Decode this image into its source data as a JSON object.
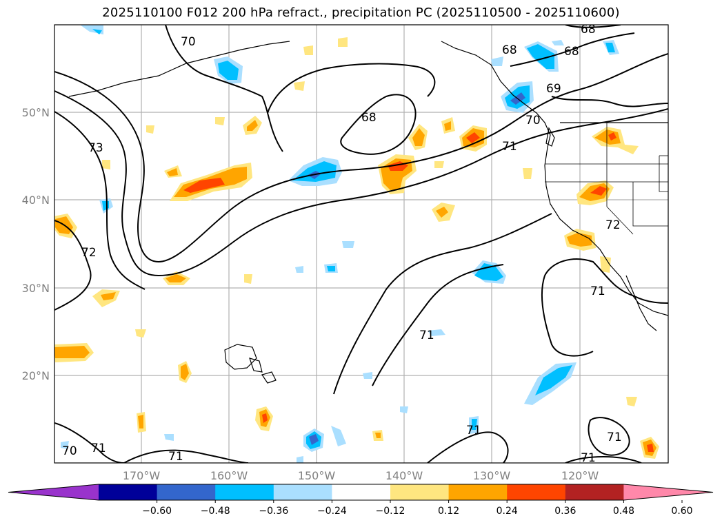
{
  "title": "2025110100 F012 200 hPa refract., precipitation PC (2025110500 - 2025110600)",
  "lat_labels": [
    "50°N",
    "40°N",
    "30°N",
    "20°N"
  ],
  "lon_labels": [
    "170°W",
    "160°W",
    "150°W",
    "140°W",
    "130°W",
    "120°W"
  ],
  "contour_labels": [
    "70",
    "68",
    "68",
    "68",
    "69",
    "70",
    "71",
    "73",
    "72",
    "72",
    "71",
    "71",
    "71",
    "71",
    "71",
    "70",
    "71",
    "71"
  ],
  "colorbar": {
    "colors": [
      "#9933cc",
      "#000099",
      "#3366cc",
      "#00bfff",
      "#aadfff",
      "#ffffff",
      "#ffe680",
      "#ffa500",
      "#ff4500",
      "#b22222",
      "#ff88aa"
    ],
    "tick_labels": [
      "−0.60",
      "−0.48",
      "−0.36",
      "−0.24",
      "−0.12",
      "0.12",
      "0.24",
      "0.36",
      "0.48",
      "0.60"
    ]
  }
}
